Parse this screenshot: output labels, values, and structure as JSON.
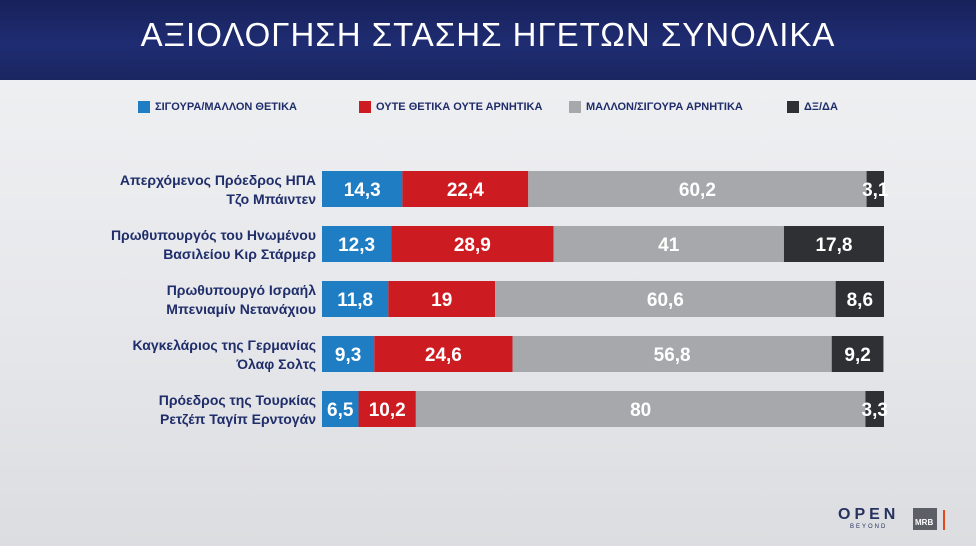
{
  "header": {
    "title": "ΑΞΙΟΛΟΓΗΣΗ ΣΤΑΣΗΣ ΗΓΕΤΩΝ ΣΥΝΟΛΙΚΑ"
  },
  "legend": [
    {
      "label": "ΣΙΓΟΥΡΑ/ΜΑΛΛΟΝ ΘΕΤΙΚΑ",
      "color": "#1f7dc4"
    },
    {
      "label": "ΟΥΤΕ ΘΕΤΙΚΑ ΟΥΤΕ ΑΡΝΗΤΙΚΑ",
      "color": "#cc1c22"
    },
    {
      "label": "ΜΑΛΛΟΝ/ΣΙΓΟΥΡΑ ΑΡΝΗΤΙΚΑ",
      "color": "#a7a8ab"
    },
    {
      "label": "ΔΞ/ΔΑ",
      "color": "#2e3033"
    }
  ],
  "chart_data": {
    "type": "bar",
    "orientation": "horizontal-stacked",
    "title": "ΑΞΙΟΛΟΓΗΣΗ ΣΤΑΣΗΣ ΗΓΕΤΩΝ ΣΥΝΟΛΙΚΑ",
    "categories": [
      [
        "Απερχόμενος Πρόεδρος ΗΠΑ",
        "Τζο Μπάιντεν"
      ],
      [
        "Πρωθυπουργός του Ηνωμένου",
        "Βασιλείου Κιρ Στάρμερ"
      ],
      [
        "Πρωθυπουργό Ισραήλ",
        "Μπενιαμίν Νετανάχιου"
      ],
      [
        "Καγκελάριος της Γερμανίας",
        "Όλαφ Σολτς"
      ],
      [
        "Πρόεδρος της Τουρκίας",
        "Ρετζέπ Ταγίπ Ερντογάν"
      ]
    ],
    "series": [
      {
        "name": "ΣΙΓΟΥΡΑ/ΜΑΛΛΟΝ ΘΕΤΙΚΑ",
        "color": "#1f7dc4",
        "values": [
          14.3,
          12.3,
          11.8,
          9.3,
          6.5
        ],
        "labels": [
          "14,3",
          "12,3",
          "11,8",
          "9,3",
          "6,5"
        ]
      },
      {
        "name": "ΟΥΤΕ ΘΕΤΙΚΑ ΟΥΤΕ ΑΡΝΗΤΙΚΑ",
        "color": "#cc1c22",
        "values": [
          22.4,
          28.9,
          19,
          24.6,
          10.2
        ],
        "labels": [
          "22,4",
          "28,9",
          "19",
          "24,6",
          "10,2"
        ]
      },
      {
        "name": "ΜΑΛΛΟΝ/ΣΙΓΟΥΡΑ ΑΡΝΗΤΙΚΑ",
        "color": "#a7a8ab",
        "values": [
          60.2,
          41,
          60.6,
          56.8,
          80
        ],
        "labels": [
          "60,2",
          "41",
          "60,6",
          "56,8",
          "80"
        ]
      },
      {
        "name": "ΔΞ/ΔΑ",
        "color": "#2e3033",
        "values": [
          3.1,
          17.8,
          8.6,
          9.2,
          3.3
        ],
        "labels": [
          "3,1",
          "17,8",
          "8,6",
          "9,2",
          "3,3"
        ]
      }
    ],
    "xlim": [
      0,
      100
    ],
    "grid": false,
    "legend_position": "top"
  },
  "branding": {
    "logo_main": "OPEN",
    "logo_sub": "BEYOND",
    "agency": "MRB"
  }
}
